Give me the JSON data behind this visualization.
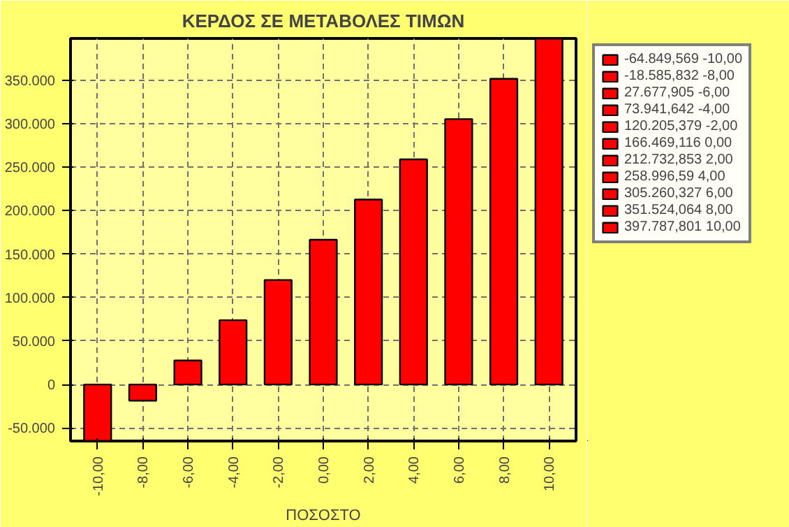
{
  "chart_data": {
    "type": "bar",
    "title": "ΚΕΡΔΟΣ ΣΕ ΜΕΤΑΒΟΛΕΣ ΤΙΜΩΝ",
    "xlabel": "ΠΟΣΟΣΤΟ",
    "stacked": true,
    "categories": [
      "-10,00",
      "-8,00",
      "-6,00",
      "-4,00",
      "-2,00",
      "0,00",
      "2,00",
      "4,00",
      "6,00",
      "8,00",
      "10,00"
    ],
    "series": [
      {
        "name": "-64.849,569 -10,00",
        "color": "#ff0000",
        "values": [
          -64849.569,
          null,
          null,
          null,
          null,
          null,
          null,
          null,
          null,
          null,
          null
        ]
      },
      {
        "name": "-18.585,832 -8,00",
        "color": "#ff0000",
        "values": [
          null,
          -18585.832,
          null,
          null,
          null,
          null,
          null,
          null,
          null,
          null,
          null
        ]
      },
      {
        "name": "27.677,905 -6,00",
        "color": "#ff0000",
        "values": [
          null,
          null,
          27677.905,
          null,
          null,
          null,
          null,
          null,
          null,
          null,
          null
        ]
      },
      {
        "name": "73.941,642 -4,00",
        "color": "#ff0000",
        "values": [
          null,
          null,
          null,
          73941.642,
          null,
          null,
          null,
          null,
          null,
          null,
          null
        ]
      },
      {
        "name": "120.205,379 -2,00",
        "color": "#ff0000",
        "values": [
          null,
          null,
          null,
          null,
          120205.379,
          null,
          null,
          null,
          null,
          null,
          null
        ]
      },
      {
        "name": "166.469,116 0,00",
        "color": "#ff0000",
        "values": [
          null,
          null,
          null,
          null,
          null,
          166469.116,
          null,
          null,
          null,
          null,
          null
        ]
      },
      {
        "name": "212.732,853 2,00",
        "color": "#ff0000",
        "values": [
          null,
          null,
          null,
          null,
          null,
          null,
          212732.853,
          null,
          null,
          null,
          null
        ]
      },
      {
        "name": "258.996,59 4,00",
        "color": "#ff0000",
        "values": [
          null,
          null,
          null,
          null,
          null,
          null,
          null,
          258996.59,
          null,
          null,
          null
        ]
      },
      {
        "name": "305.260,327 6,00",
        "color": "#ff0000",
        "values": [
          null,
          null,
          null,
          null,
          null,
          null,
          null,
          null,
          305260.327,
          null,
          null
        ]
      },
      {
        "name": "351.524,064 8,00",
        "color": "#ff0000",
        "values": [
          null,
          null,
          null,
          null,
          null,
          null,
          null,
          null,
          null,
          351524.064,
          null
        ]
      },
      {
        "name": "397.787,801 10,00",
        "color": "#ff0000",
        "values": [
          null,
          null,
          null,
          null,
          null,
          null,
          null,
          null,
          null,
          null,
          397787.801
        ]
      }
    ],
    "ylim": [
      -65000,
      398000
    ],
    "yticks": [
      {
        "value": -50000,
        "label": "-50.000"
      },
      0,
      {
        "value": 50000,
        "label": "50.000"
      },
      {
        "value": 100000,
        "label": "100.000"
      },
      {
        "value": 150000,
        "label": "150.000"
      },
      {
        "value": 200000,
        "label": "200.000"
      },
      {
        "value": 250000,
        "label": "250.000"
      },
      {
        "value": 300000,
        "label": "300.000"
      },
      {
        "value": 350000,
        "label": "350.000"
      }
    ],
    "grid": true,
    "legend": "right"
  }
}
